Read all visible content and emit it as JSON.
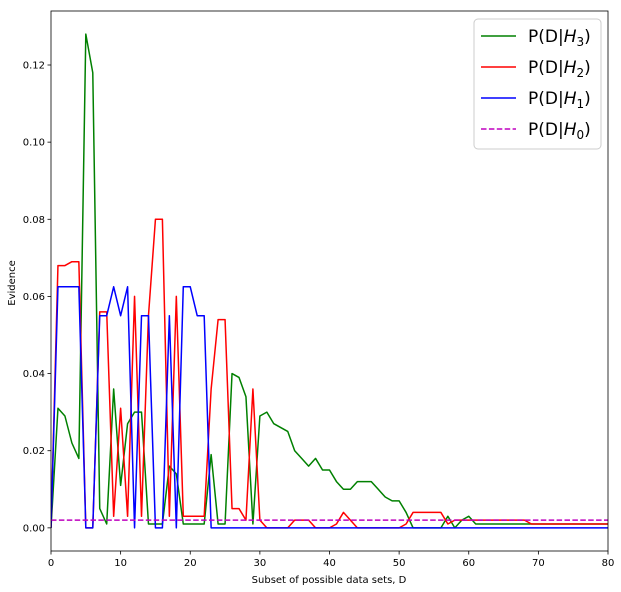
{
  "chart_data": {
    "type": "line",
    "xlabel": "Subset of possible data sets, D",
    "ylabel": "Evidence",
    "xlim": [
      0,
      80
    ],
    "ylim": [
      -0.006,
      0.134
    ],
    "xticks": [
      0,
      10,
      20,
      30,
      40,
      50,
      60,
      70,
      80
    ],
    "xtick_labels": [
      "0",
      "10",
      "20",
      "30",
      "40",
      "50",
      "60",
      "70",
      "80"
    ],
    "yticks": [
      0.0,
      0.02,
      0.04,
      0.06,
      0.08,
      0.1,
      0.12
    ],
    "ytick_labels": [
      "0.00",
      "0.02",
      "0.04",
      "0.06",
      "0.08",
      "0.10",
      "0.12"
    ],
    "grid": false,
    "legend_position": "top-right",
    "series": [
      {
        "name_main": "P(D|",
        "name_sym": "H",
        "name_sub": "3",
        "name_end": ")",
        "color": "#008000",
        "dash": "solid",
        "x": [
          0,
          1,
          2,
          3,
          4,
          5,
          6,
          7,
          8,
          9,
          10,
          11,
          12,
          13,
          14,
          15,
          16,
          17,
          18,
          19,
          20,
          21,
          22,
          23,
          24,
          25,
          26,
          27,
          28,
          29,
          30,
          31,
          32,
          33,
          34,
          35,
          36,
          37,
          38,
          39,
          40,
          41,
          42,
          43,
          44,
          45,
          46,
          47,
          48,
          49,
          50,
          51,
          52,
          53,
          54,
          55,
          56,
          57,
          58,
          59,
          60,
          61,
          62,
          63,
          64,
          65,
          66,
          67,
          68,
          69,
          70,
          71,
          72,
          73,
          74,
          75,
          76,
          77,
          78,
          79,
          80
        ],
        "y": [
          0.0,
          0.031,
          0.029,
          0.022,
          0.018,
          0.128,
          0.118,
          0.005,
          0.001,
          0.036,
          0.011,
          0.027,
          0.03,
          0.03,
          0.001,
          0.001,
          0.001,
          0.016,
          0.014,
          0.001,
          0.001,
          0.001,
          0.001,
          0.019,
          0.001,
          0.001,
          0.04,
          0.039,
          0.034,
          0.001,
          0.029,
          0.03,
          0.027,
          0.026,
          0.025,
          0.02,
          0.018,
          0.016,
          0.018,
          0.015,
          0.015,
          0.012,
          0.01,
          0.01,
          0.012,
          0.012,
          0.012,
          0.01,
          0.008,
          0.007,
          0.007,
          0.004,
          0.0,
          0.0,
          0.0,
          0.0,
          0.0,
          0.003,
          0.0,
          0.002,
          0.003,
          0.001,
          0.001,
          0.001,
          0.001,
          0.001,
          0.001,
          0.001,
          0.001,
          0.001,
          0.001,
          0.001,
          0.001,
          0.001,
          0.001,
          0.001,
          0.001,
          0.001,
          0.001,
          0.001,
          0.001
        ]
      },
      {
        "name_main": "P(D|",
        "name_sym": "H",
        "name_sub": "2",
        "name_end": ")",
        "color": "#ff0000",
        "dash": "solid",
        "x": [
          0,
          1,
          2,
          3,
          4,
          5,
          6,
          7,
          8,
          9,
          10,
          11,
          12,
          13,
          14,
          15,
          16,
          17,
          18,
          19,
          20,
          21,
          22,
          23,
          24,
          25,
          26,
          27,
          28,
          29,
          30,
          31,
          32,
          33,
          34,
          35,
          36,
          37,
          38,
          39,
          40,
          41,
          42,
          43,
          44,
          45,
          46,
          47,
          48,
          49,
          50,
          51,
          52,
          53,
          54,
          55,
          56,
          57,
          58,
          59,
          60,
          61,
          62,
          63,
          64,
          65,
          66,
          67,
          68,
          69,
          70,
          71,
          72,
          73,
          74,
          75,
          76,
          77,
          78,
          79,
          80
        ],
        "y": [
          0.0,
          0.068,
          0.068,
          0.069,
          0.069,
          0.0,
          0.0,
          0.056,
          0.056,
          0.003,
          0.031,
          0.003,
          0.06,
          0.003,
          0.055,
          0.08,
          0.08,
          0.003,
          0.06,
          0.003,
          0.003,
          0.003,
          0.003,
          0.036,
          0.054,
          0.054,
          0.005,
          0.005,
          0.002,
          0.036,
          0.002,
          0.0,
          0.0,
          0.0,
          0.0,
          0.002,
          0.002,
          0.002,
          0.0,
          0.0,
          0.0,
          0.001,
          0.004,
          0.002,
          0.0,
          0.0,
          0.0,
          0.0,
          0.0,
          0.0,
          0.0,
          0.001,
          0.004,
          0.004,
          0.004,
          0.004,
          0.004,
          0.001,
          0.002,
          0.002,
          0.002,
          0.002,
          0.002,
          0.002,
          0.002,
          0.002,
          0.002,
          0.002,
          0.002,
          0.001,
          0.001,
          0.001,
          0.001,
          0.001,
          0.001,
          0.001,
          0.001,
          0.001,
          0.001,
          0.001,
          0.001
        ]
      },
      {
        "name_main": "P(D|",
        "name_sym": "H",
        "name_sub": "1",
        "name_end": ")",
        "color": "#0000ff",
        "dash": "solid",
        "x": [
          0,
          1,
          2,
          3,
          4,
          5,
          6,
          7,
          8,
          9,
          10,
          11,
          12,
          13,
          14,
          15,
          16,
          17,
          18,
          19,
          20,
          21,
          22,
          23,
          24,
          25,
          26,
          27,
          28,
          29,
          30,
          31,
          32,
          33,
          34,
          35,
          36,
          37,
          38,
          39,
          40,
          41,
          42,
          43,
          44,
          45,
          46,
          47,
          48,
          49,
          50,
          51,
          52,
          53,
          54,
          55,
          56,
          57,
          58,
          59,
          60,
          61,
          62,
          63,
          64,
          65,
          66,
          67,
          68,
          69,
          70,
          71,
          72,
          73,
          74,
          75,
          76,
          77,
          78,
          79,
          80
        ],
        "y": [
          0.0,
          0.0625,
          0.0625,
          0.0625,
          0.0625,
          0.0,
          0.0,
          0.055,
          0.055,
          0.0625,
          0.055,
          0.0625,
          0.0,
          0.055,
          0.055,
          0.0,
          0.0,
          0.055,
          0.0,
          0.0625,
          0.0625,
          0.055,
          0.055,
          0.0,
          0.0,
          0.0,
          0.0,
          0.0,
          0.0,
          0.0,
          0.0,
          0.0,
          0.0,
          0.0,
          0.0,
          0.0,
          0.0,
          0.0,
          0.0,
          0.0,
          0.0,
          0.0,
          0.0,
          0.0,
          0.0,
          0.0,
          0.0,
          0.0,
          0.0,
          0.0,
          0.0,
          0.0,
          0.0,
          0.0,
          0.0,
          0.0,
          0.0,
          0.0,
          0.0,
          0.0,
          0.0,
          0.0,
          0.0,
          0.0,
          0.0,
          0.0,
          0.0,
          0.0,
          0.0,
          0.0,
          0.0,
          0.0,
          0.0,
          0.0,
          0.0,
          0.0,
          0.0,
          0.0,
          0.0,
          0.0,
          0.0
        ]
      },
      {
        "name_main": "P(D|",
        "name_sym": "H",
        "name_sub": "0",
        "name_end": ")",
        "color": "#bf00bf",
        "dash": "dashed",
        "x": [
          0,
          80
        ],
        "y": [
          0.002,
          0.002
        ]
      }
    ]
  }
}
